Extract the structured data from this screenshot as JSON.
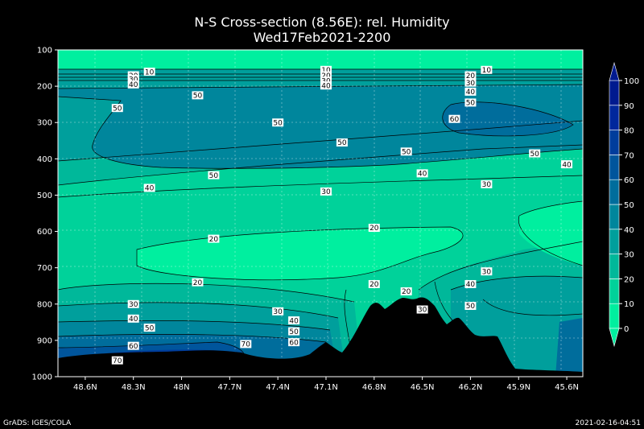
{
  "chart_data": {
    "type": "contour",
    "title": "N-S Cross-section (8.56E): rel. Humidity",
    "subtitle": "Wed17Feb2021-2200",
    "x_ticks": [
      "48.6N",
      "48.3N",
      "48N",
      "47.7N",
      "47.4N",
      "47.1N",
      "46.8N",
      "46.5N",
      "46.2N",
      "45.9N",
      "45.6N"
    ],
    "y_ticks": [
      100,
      200,
      300,
      400,
      500,
      600,
      700,
      800,
      900,
      1000
    ],
    "ylim": [
      1000,
      100
    ],
    "colorbar": {
      "levels": [
        0,
        10,
        20,
        30,
        40,
        50,
        60,
        70,
        80,
        90,
        100
      ],
      "colors": [
        "#00ef9f",
        "#00d29a",
        "#00b89a",
        "#009f9c",
        "#00869c",
        "#006d9c",
        "#00559c",
        "#003d9c",
        "#00279c",
        "#001a8f"
      ]
    },
    "contour_labels": [
      {
        "text": "10",
        "x": "48.2N",
        "y": 160
      },
      {
        "text": "10",
        "x": "47.1N",
        "y": 155
      },
      {
        "text": "10",
        "x": "46.1N",
        "y": 155
      },
      {
        "text": "20",
        "x": "48.3N",
        "y": 170
      },
      {
        "text": "30",
        "x": "48.3N",
        "y": 180
      },
      {
        "text": "40",
        "x": "48.3N",
        "y": 195
      },
      {
        "text": "20",
        "x": "47.1N",
        "y": 170
      },
      {
        "text": "30",
        "x": "47.1N",
        "y": 185
      },
      {
        "text": "40",
        "x": "47.1N",
        "y": 198
      },
      {
        "text": "20",
        "x": "46.2N",
        "y": 170
      },
      {
        "text": "30",
        "x": "46.2N",
        "y": 190
      },
      {
        "text": "40",
        "x": "46.2N",
        "y": 215
      },
      {
        "text": "50",
        "x": "48.4N",
        "y": 260
      },
      {
        "text": "50",
        "x": "47.9N",
        "y": 225
      },
      {
        "text": "50",
        "x": "47.4N",
        "y": 300
      },
      {
        "text": "50",
        "x": "46.2N",
        "y": 245
      },
      {
        "text": "60",
        "x": "46.3N",
        "y": 290
      },
      {
        "text": "50",
        "x": "47.0N",
        "y": 355
      },
      {
        "text": "50",
        "x": "46.6N",
        "y": 380
      },
      {
        "text": "50",
        "x": "45.8N",
        "y": 385
      },
      {
        "text": "40",
        "x": "45.6N",
        "y": 415
      },
      {
        "text": "50",
        "x": "47.8N",
        "y": 445
      },
      {
        "text": "40",
        "x": "46.5N",
        "y": 440
      },
      {
        "text": "30",
        "x": "46.1N",
        "y": 470
      },
      {
        "text": "40",
        "x": "48.2N",
        "y": 480
      },
      {
        "text": "30",
        "x": "47.1N",
        "y": 490
      },
      {
        "text": "20",
        "x": "46.8N",
        "y": 590
      },
      {
        "text": "20",
        "x": "47.8N",
        "y": 620
      },
      {
        "text": "20",
        "x": "47.9N",
        "y": 740
      },
      {
        "text": "20",
        "x": "46.8N",
        "y": 745
      },
      {
        "text": "20",
        "x": "46.6N",
        "y": 765
      },
      {
        "text": "30",
        "x": "46.1N",
        "y": 710
      },
      {
        "text": "40",
        "x": "46.2N",
        "y": 745
      },
      {
        "text": "50",
        "x": "46.2N",
        "y": 805
      },
      {
        "text": "30",
        "x": "46.5N",
        "y": 815
      },
      {
        "text": "30",
        "x": "48.3N",
        "y": 800
      },
      {
        "text": "30",
        "x": "47.4N",
        "y": 820
      },
      {
        "text": "40",
        "x": "48.3N",
        "y": 840
      },
      {
        "text": "40",
        "x": "47.3N",
        "y": 845
      },
      {
        "text": "50",
        "x": "48.2N",
        "y": 865
      },
      {
        "text": "50",
        "x": "47.3N",
        "y": 875
      },
      {
        "text": "60",
        "x": "47.3N",
        "y": 905
      },
      {
        "text": "60",
        "x": "48.3N",
        "y": 915
      },
      {
        "text": "70",
        "x": "47.6N",
        "y": 910
      },
      {
        "text": "70",
        "x": "48.4N",
        "y": 955
      }
    ]
  },
  "footer": {
    "left": "GrADS: IGES/COLA",
    "right": "2021-02-16-04:51"
  }
}
